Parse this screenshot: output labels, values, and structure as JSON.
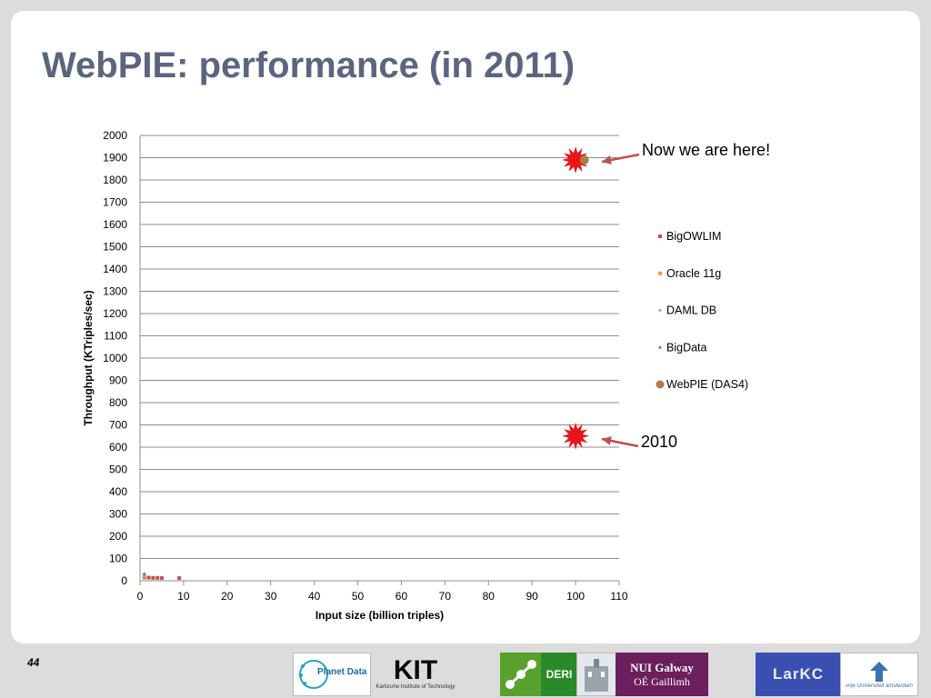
{
  "slide": {
    "title": "WebPIE: performance (in 2011)",
    "page_number": "44"
  },
  "annotations": {
    "now": "Now we are here!",
    "y2010": "2010"
  },
  "colors": {
    "title": "#5a6580",
    "bigowlim": "#c0504d",
    "oracle": "#f79646",
    "damldb": "#9bbb59",
    "bigdata": "#4f81bd",
    "webpie": "#b07a4a",
    "star": "#e8151b",
    "arrow": "#c0504d"
  },
  "chart_data": {
    "type": "scatter",
    "xlabel": "Input size (billion triples)",
    "ylabel": "Throughput (KTriples/sec)",
    "xlim": [
      0,
      110
    ],
    "ylim": [
      0,
      2000
    ],
    "x_ticks": [
      "0",
      "10",
      "20",
      "30",
      "40",
      "50",
      "60",
      "70",
      "80",
      "90",
      "100",
      "110"
    ],
    "y_ticks": [
      "0",
      "100",
      "200",
      "300",
      "400",
      "500",
      "600",
      "700",
      "800",
      "900",
      "1000",
      "1100",
      "1200",
      "1300",
      "1400",
      "1500",
      "1600",
      "1700",
      "1800",
      "1900",
      "2000"
    ],
    "grid": "horizontal",
    "legend_position": "right",
    "series": [
      {
        "name": "BigOWLIM",
        "marker": "square",
        "points": [
          [
            1,
            15
          ],
          [
            2,
            14
          ],
          [
            3,
            13
          ],
          [
            4,
            13
          ],
          [
            5,
            12
          ],
          [
            9,
            12
          ]
        ]
      },
      {
        "name": "Oracle 11g",
        "marker": "square",
        "points": [
          [
            1,
            20
          ]
        ]
      },
      {
        "name": "DAML DB",
        "marker": "diamond",
        "points": [
          [
            1,
            25
          ]
        ]
      },
      {
        "name": "BigData",
        "marker": "diamond",
        "points": [
          [
            1,
            30
          ]
        ]
      },
      {
        "name": "WebPIE (DAS4)",
        "marker": "circle",
        "points": [
          [
            102,
            1890
          ]
        ]
      }
    ],
    "highlights": [
      {
        "label": "Now we are here!",
        "x": 100,
        "y": 1890
      },
      {
        "label": "2010",
        "x": 100,
        "y": 650
      }
    ]
  },
  "logos": {
    "planetdata": "Planet Data",
    "kit": "KIT",
    "kit_sub": "Karlsruhe Institute of Technology",
    "deri": "DERI",
    "nui_line1": "NUI Galway",
    "nui_line2": "OÉ Gaillimh",
    "larkc": "LarKC",
    "vu": "vrije Universiteit amsterdam"
  }
}
